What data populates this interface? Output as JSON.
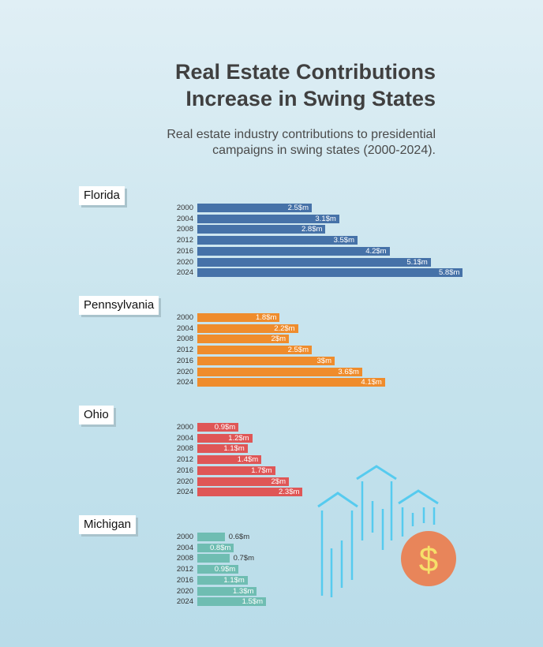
{
  "title_line1": "Real Estate Contributions",
  "title_line2": "Increase in Swing States",
  "subtitle_line1": "Real estate industry contributions to presidential",
  "subtitle_line2": "campaigns in swing states (2000-2024).",
  "decoration": {
    "icon": "real-estate-dollar-icon",
    "symbol": "$"
  },
  "chart_data": [
    {
      "type": "bar",
      "state": "Florida",
      "color": "#4672a8",
      "categories": [
        "2000",
        "2004",
        "2008",
        "2012",
        "2016",
        "2020",
        "2024"
      ],
      "values": [
        2.5,
        3.1,
        2.8,
        3.5,
        4.2,
        5.1,
        5.8
      ],
      "value_labels": [
        "2.5$m",
        "3.1$m",
        "2.8$m",
        "3.5$m",
        "4.2$m",
        "5.1$m",
        "5.8$m"
      ]
    },
    {
      "type": "bar",
      "state": "Pennsylvania",
      "color": "#ef8c2c",
      "categories": [
        "2000",
        "2004",
        "2008",
        "2012",
        "2016",
        "2020",
        "2024"
      ],
      "values": [
        1.8,
        2.2,
        2.0,
        2.5,
        3.0,
        3.6,
        4.1
      ],
      "value_labels": [
        "1.8$m",
        "2.2$m",
        "2$m",
        "2.5$m",
        "3$m",
        "3.6$m",
        "4.1$m"
      ]
    },
    {
      "type": "bar",
      "state": "Ohio",
      "color": "#df5656",
      "categories": [
        "2000",
        "2004",
        "2008",
        "2012",
        "2016",
        "2020",
        "2024"
      ],
      "values": [
        0.9,
        1.2,
        1.1,
        1.4,
        1.7,
        2.0,
        2.3
      ],
      "value_labels": [
        "0.9$m",
        "1.2$m",
        "1.1$m",
        "1.4$m",
        "1.7$m",
        "2$m",
        "2.3$m"
      ]
    },
    {
      "type": "bar",
      "state": "Michigan",
      "color": "#6fbdb2",
      "categories": [
        "2000",
        "2004",
        "2008",
        "2012",
        "2016",
        "2020",
        "2024"
      ],
      "values": [
        0.6,
        0.8,
        0.7,
        0.9,
        1.1,
        1.3,
        1.5
      ],
      "value_labels": [
        "0.6$m",
        "0.8$m",
        "0.7$m",
        "0.9$m",
        "1.1$m",
        "1.3$m",
        "1.5$m"
      ]
    }
  ]
}
